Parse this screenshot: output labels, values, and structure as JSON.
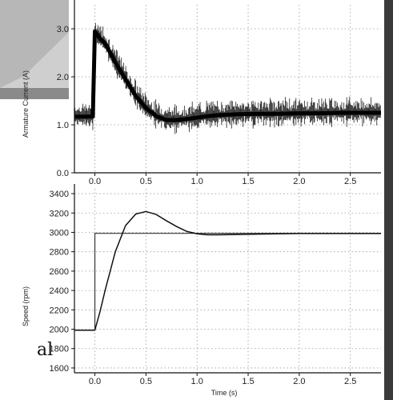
{
  "background": {
    "partial_text": "al",
    "colors": {
      "dark_frame": "#3a3a3a",
      "slide_gray": "#cfcfcf",
      "slide_blue": "#b9c6d3"
    }
  },
  "chart_data": [
    {
      "type": "line",
      "xlabel": "",
      "ylabel": "Armature Current (A)",
      "xlim": [
        -0.2,
        2.8
      ],
      "ylim": [
        0.0,
        3.5
      ],
      "x_ticks": [
        "0.0",
        "0.5",
        "1.0",
        "1.5",
        "2.0",
        "2.5"
      ],
      "x_tick_values": [
        0.0,
        0.5,
        1.0,
        1.5,
        2.0,
        2.5
      ],
      "y_ticks": [
        "0.0",
        "1.0",
        "2.0",
        "3.0"
      ],
      "y_tick_values": [
        0.0,
        1.0,
        2.0,
        3.0
      ],
      "grid": true,
      "series": [
        {
          "x": [
            -0.2,
            -0.1,
            -0.02,
            0.0,
            0.05,
            0.1,
            0.15,
            0.2,
            0.3,
            0.4,
            0.5,
            0.6,
            0.7,
            0.8,
            0.9,
            1.0,
            1.1,
            1.2,
            1.4,
            1.6,
            1.8,
            2.0,
            2.2,
            2.4,
            2.6,
            2.8
          ],
          "values": [
            1.17,
            1.17,
            1.17,
            2.95,
            2.8,
            2.7,
            2.5,
            2.3,
            1.95,
            1.6,
            1.35,
            1.18,
            1.1,
            1.1,
            1.12,
            1.15,
            1.18,
            1.2,
            1.22,
            1.23,
            1.23,
            1.24,
            1.24,
            1.25,
            1.25,
            1.25
          ],
          "noise_amplitude": 0.25
        }
      ]
    },
    {
      "type": "line",
      "xlabel": "Time (s)",
      "ylabel": "Speed (rpm)",
      "xlim": [
        -0.2,
        2.8
      ],
      "ylim": [
        1550,
        3450
      ],
      "x_ticks": [
        "0.0",
        "0.5",
        "1.0",
        "1.5",
        "2.0",
        "2.5"
      ],
      "x_tick_values": [
        0.0,
        0.5,
        1.0,
        1.5,
        2.0,
        2.5
      ],
      "y_ticks": [
        "1600",
        "1800",
        "2000",
        "2200",
        "2400",
        "2600",
        "2800",
        "3000",
        "3200",
        "3400"
      ],
      "y_tick_values": [
        1600,
        1800,
        2000,
        2200,
        2400,
        2600,
        2800,
        3000,
        3200,
        3400
      ],
      "grid": true,
      "series": [
        {
          "x": [
            -0.2,
            0.0,
            0.0,
            2.8
          ],
          "values": [
            1990,
            1990,
            2990,
            2990
          ]
        },
        {
          "x": [
            -0.2,
            0.0,
            0.05,
            0.1,
            0.2,
            0.3,
            0.4,
            0.5,
            0.6,
            0.7,
            0.8,
            0.9,
            1.0,
            1.1,
            1.2,
            1.4,
            1.6,
            1.8,
            2.0,
            2.2,
            2.4,
            2.6,
            2.8
          ],
          "values": [
            1990,
            1990,
            2180,
            2400,
            2800,
            3070,
            3190,
            3215,
            3185,
            3120,
            3060,
            3010,
            2985,
            2975,
            2975,
            2978,
            2982,
            2985,
            2988,
            2988,
            2988,
            2988,
            2988
          ]
        }
      ]
    }
  ]
}
